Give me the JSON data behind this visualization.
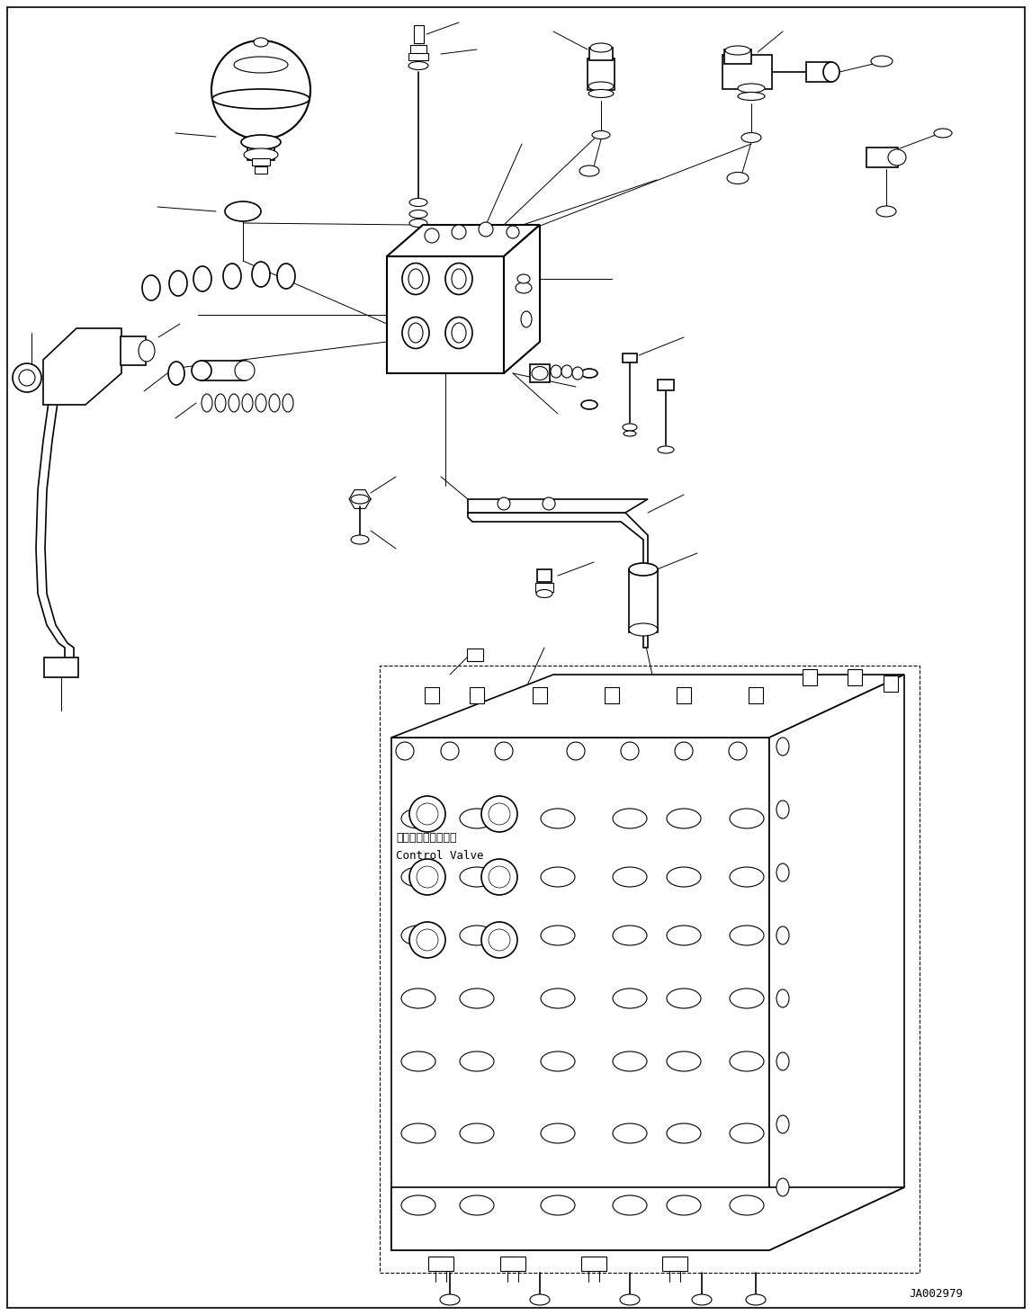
{
  "fig_width": 11.47,
  "fig_height": 14.62,
  "dpi": 100,
  "bg": "#ffffff",
  "lc": "#000000",
  "lw": 1.2,
  "tlw": 0.7,
  "watermark": "JA002979",
  "cv_label_jp": "コントロールバルブ",
  "cv_label_en": "Control Valve"
}
